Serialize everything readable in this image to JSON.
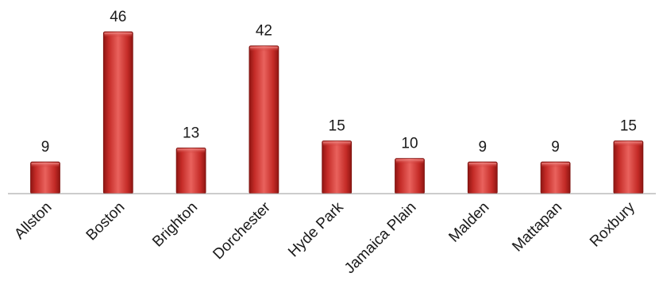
{
  "chart_data": {
    "type": "bar",
    "categories": [
      "Allston",
      "Boston",
      "Brighton",
      "Dorchester",
      "Hyde Park",
      "Jamaica Plain",
      "Malden",
      "Mattapan",
      "Roxbury"
    ],
    "values": [
      9,
      46,
      13,
      42,
      15,
      10,
      9,
      9,
      15
    ],
    "title": "",
    "xlabel": "",
    "ylabel": "",
    "ylim": [
      0,
      50
    ],
    "grid": false,
    "legend": "none",
    "data_labels": true,
    "bar_color": "#c4302b"
  }
}
